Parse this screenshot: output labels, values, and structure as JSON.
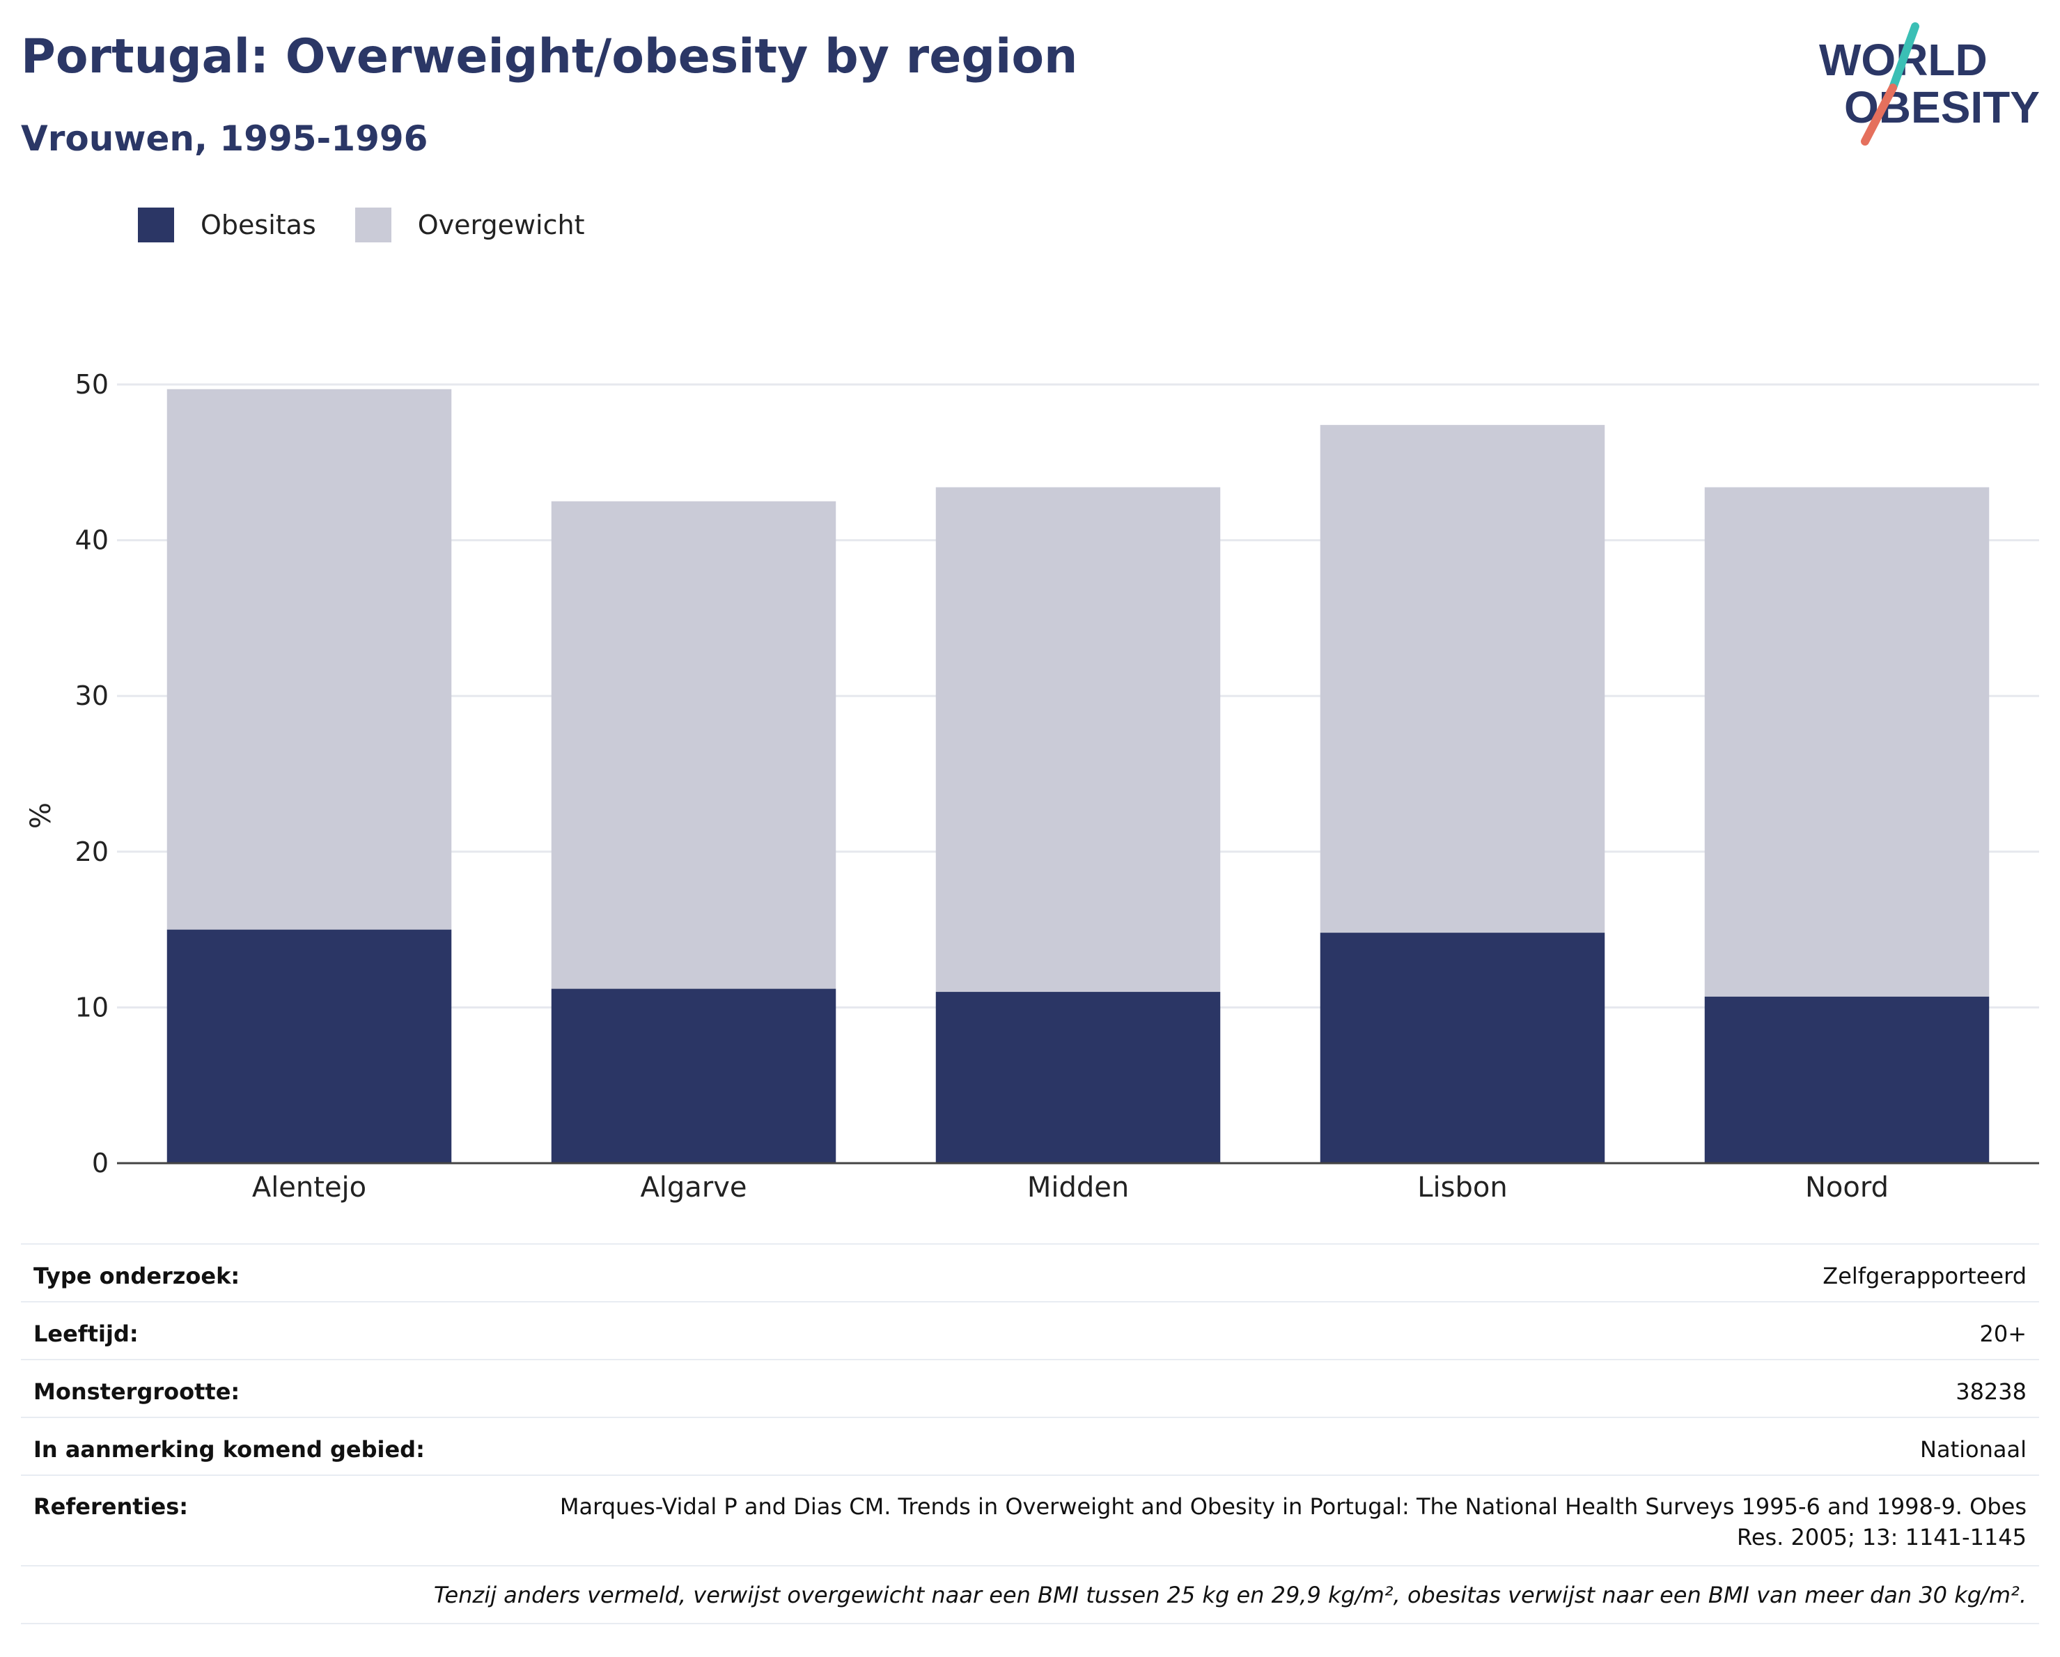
{
  "header": {
    "title": "Portugal: Overweight/obesity by region",
    "subtitle": "Vrouwen, 1995-1996",
    "logo_line1": "WORLD",
    "logo_line2": "OBESITY"
  },
  "legend": [
    {
      "label": "Obesitas",
      "color": "#2b3665"
    },
    {
      "label": "Overgewicht",
      "color": "#cacbd7"
    }
  ],
  "chart_data": {
    "type": "bar",
    "stacked": true,
    "categories": [
      "Alentejo",
      "Algarve",
      "Midden",
      "Lisbon",
      "Noord"
    ],
    "series": [
      {
        "name": "Obesitas",
        "values": [
          15.0,
          11.2,
          11.0,
          14.8,
          10.7
        ],
        "color": "#2b3665"
      },
      {
        "name": "Overgewicht",
        "values": [
          34.7,
          31.3,
          32.4,
          32.6,
          32.7
        ],
        "color": "#cacbd7"
      }
    ],
    "ylabel": "%",
    "ylim": [
      0,
      50
    ],
    "yticks": [
      0,
      10,
      20,
      30,
      40,
      50
    ],
    "grid": true,
    "legend_position": "top-left"
  },
  "meta": {
    "rows": [
      {
        "key": "Type onderzoek:",
        "value": "Zelfgerapporteerd"
      },
      {
        "key": "Leeftijd:",
        "value": "20+"
      },
      {
        "key": "Monstergrootte:",
        "value": "38238"
      },
      {
        "key": "In aanmerking komend gebied:",
        "value": "Nationaal"
      }
    ],
    "references_key": "Referenties:",
    "references_line1": "Marques-Vidal P and Dias CM. Trends in Overweight and Obesity in Portugal: The National Health Surveys 1995-6 and 1998-9. Obes",
    "references_line2": "Res. 2005; 13: 1141-1145",
    "note": "Tenzij anders vermeld, verwijst overgewicht naar een BMI tussen 25 kg en 29,9 kg/m², obesitas verwijst naar een BMI van meer dan 30 kg/m²."
  }
}
